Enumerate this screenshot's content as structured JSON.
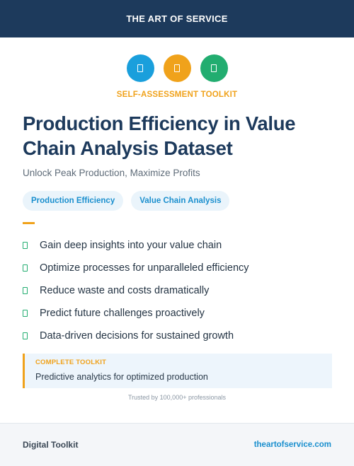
{
  "header": {
    "brand": "THE ART OF SERVICE"
  },
  "icons": [
    {
      "name": "document-icon",
      "color": "#1a9fdc"
    },
    {
      "name": "document-icon",
      "color": "#f0a21b"
    },
    {
      "name": "document-icon",
      "color": "#22ad70"
    }
  ],
  "kicker": {
    "text": "SELF-ASSESSMENT TOOLKIT",
    "color": "#f0a21b"
  },
  "title": "Production Efficiency in Value Chain Analysis Dataset",
  "subtitle": "Unlock Peak Production, Maximize Profits",
  "tags": [
    "Production Efficiency",
    "Value Chain Analysis"
  ],
  "features": [
    "Gain deep insights into your value chain",
    "Optimize processes for unparalleled efficiency",
    "Reduce waste and costs dramatically",
    "Predict future challenges proactively",
    "Data-driven decisions for sustained growth"
  ],
  "callout": {
    "label": "COMPLETE TOOLKIT",
    "text": "Predictive analytics for optimized production"
  },
  "trusted": "Trusted by 100,000+ professionals",
  "footer": {
    "left": "Digital Toolkit",
    "right": "theartofservice.com"
  }
}
